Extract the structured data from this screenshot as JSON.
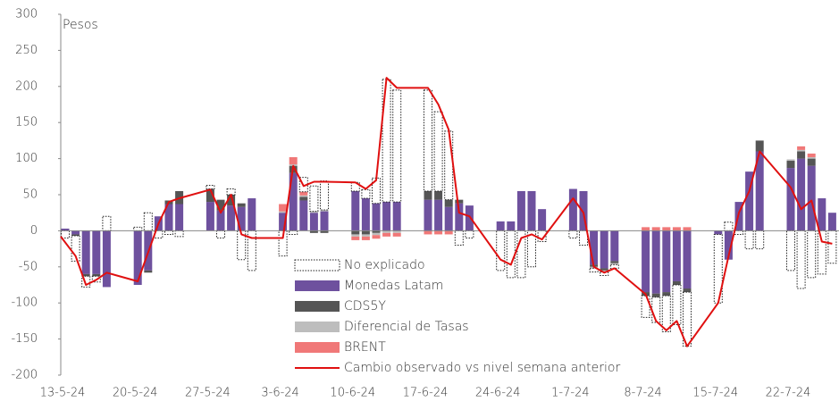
{
  "chart_data": {
    "type": "bar",
    "stacked": true,
    "y_label": "Pesos",
    "ylim": [
      -200,
      300
    ],
    "yticks": [
      -200,
      -150,
      -100,
      -50,
      0,
      50,
      100,
      150,
      200,
      250,
      300
    ],
    "categories": [
      "13-5-24",
      null,
      null,
      null,
      null,
      "20-5-24",
      null,
      null,
      null,
      null,
      "27-5-24",
      null,
      null,
      null,
      null,
      "3-6-24",
      null,
      null,
      null,
      null,
      "10-6-24",
      null,
      null,
      null,
      null,
      "17-6-24",
      null,
      null,
      null,
      null,
      "24-6-24",
      null,
      null,
      null,
      null,
      "1-7-24",
      null,
      null,
      null,
      null,
      "8-7-24",
      null,
      null,
      null,
      null,
      "15-7-24",
      null,
      null,
      null,
      null,
      "22-7-24",
      null,
      null,
      null,
      null
    ],
    "series": [
      {
        "name": "No explicado",
        "type": "bar",
        "color": "#ffffff",
        "border": "dotted",
        "values": [
          -10,
          -35,
          -15,
          -8,
          20,
          5,
          25,
          -10,
          -5,
          -8,
          5,
          -10,
          8,
          -40,
          -55,
          -35,
          -5,
          20,
          35,
          40,
          12,
          12,
          35,
          170,
          155,
          140,
          110,
          95,
          -20,
          -10,
          -55,
          -65,
          -65,
          -50,
          -15,
          -10,
          -20,
          -5,
          -5,
          -5,
          -30,
          -35,
          -50,
          -55,
          -75,
          -95,
          12,
          -5,
          -25,
          -25,
          -55,
          -80,
          -65,
          -60,
          -45
        ]
      },
      {
        "name": "Monedas Latam",
        "type": "bar",
        "color": "#6e519e",
        "values": [
          3,
          -5,
          -60,
          -60,
          -78,
          -75,
          -55,
          20,
          37,
          37,
          40,
          28,
          35,
          33,
          45,
          25,
          80,
          42,
          25,
          27,
          55,
          45,
          38,
          40,
          40,
          43,
          43,
          33,
          38,
          35,
          13,
          13,
          55,
          55,
          30,
          58,
          55,
          -47,
          -52,
          -42,
          -85,
          -87,
          -85,
          -70,
          -80,
          -5,
          -40,
          40,
          82,
          110,
          87,
          100,
          90,
          45,
          25
        ]
      },
      {
        "name": "CDS5Y",
        "type": "bar",
        "color": "#555555",
        "values": [
          0,
          -2,
          -3,
          -3,
          0,
          0,
          -3,
          0,
          5,
          18,
          18,
          15,
          15,
          5,
          0,
          0,
          10,
          5,
          -3,
          -3,
          -5,
          -5,
          -3,
          0,
          0,
          12,
          12,
          10,
          5,
          0,
          0,
          0,
          0,
          0,
          0,
          0,
          0,
          -3,
          -3,
          -3,
          -5,
          -5,
          -5,
          -5,
          -5,
          0,
          0,
          0,
          0,
          15,
          10,
          10,
          10,
          0,
          0
        ]
      },
      {
        "name": "Diferencial de Tasas",
        "type": "bar",
        "color": "#bdbdbd",
        "values": [
          0,
          0,
          0,
          0,
          0,
          0,
          0,
          0,
          0,
          0,
          0,
          0,
          0,
          0,
          0,
          2,
          2,
          2,
          2,
          2,
          -3,
          -3,
          -3,
          -3,
          -3,
          0,
          0,
          0,
          0,
          0,
          0,
          0,
          0,
          0,
          0,
          0,
          0,
          -2,
          -2,
          -2,
          0,
          0,
          0,
          0,
          0,
          0,
          0,
          0,
          0,
          0,
          2,
          2,
          2,
          0,
          0
        ]
      },
      {
        "name": "BRENT",
        "type": "bar",
        "color": "#f07878",
        "values": [
          0,
          0,
          0,
          0,
          0,
          0,
          0,
          0,
          0,
          0,
          0,
          0,
          0,
          0,
          0,
          10,
          10,
          5,
          0,
          0,
          -5,
          -5,
          -5,
          -5,
          -5,
          -5,
          -5,
          -5,
          0,
          0,
          0,
          0,
          0,
          0,
          0,
          0,
          0,
          0,
          0,
          0,
          5,
          5,
          5,
          5,
          5,
          0,
          0,
          0,
          0,
          0,
          0,
          5,
          5,
          0,
          0
        ]
      },
      {
        "name": "Cambio observado vs nivel semana anterior",
        "type": "line",
        "color": "#e01010",
        "values": [
          -8,
          -35,
          -75,
          -68,
          -58,
          -70,
          -30,
          10,
          40,
          45,
          57,
          25,
          50,
          -5,
          -10,
          -10,
          90,
          62,
          68,
          68,
          67,
          58,
          70,
          212,
          198,
          198,
          175,
          140,
          25,
          20,
          -40,
          -47,
          -10,
          -5,
          -12,
          45,
          25,
          -50,
          -58,
          -52,
          -88,
          -125,
          -138,
          -125,
          -160,
          -100,
          -35,
          25,
          55,
          110,
          60,
          30,
          42,
          -15,
          -18
        ]
      }
    ]
  }
}
